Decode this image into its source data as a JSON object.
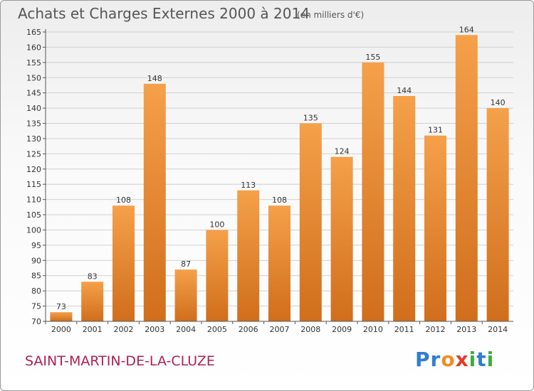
{
  "header": {
    "title": "Achats et Charges Externes 2000 à 2014",
    "unit": "(en milliers d'€)"
  },
  "footer": {
    "commune": "SAINT-MARTIN-DE-LA-CLUZE",
    "logo": "Proxiti"
  },
  "colors": {
    "bar_top": "#f5a04a",
    "bar_bottom": "#d06e1c",
    "grid": "#d0d0d0"
  },
  "chart_data": {
    "type": "bar",
    "title": "Achats et Charges Externes 2000 à 2014",
    "subtitle": "(en milliers d'€)",
    "categories": [
      "2000",
      "2001",
      "2002",
      "2003",
      "2004",
      "2005",
      "2006",
      "2007",
      "2008",
      "2009",
      "2010",
      "2011",
      "2012",
      "2013",
      "2014"
    ],
    "values": [
      73,
      83,
      108,
      148,
      87,
      100,
      113,
      108,
      135,
      124,
      155,
      144,
      131,
      164,
      140
    ],
    "ylim": [
      70,
      165
    ],
    "yticks": [
      70,
      75,
      80,
      85,
      90,
      95,
      100,
      105,
      110,
      115,
      120,
      125,
      130,
      135,
      140,
      145,
      150,
      155,
      160,
      165
    ],
    "grid": true,
    "legend": "none"
  }
}
